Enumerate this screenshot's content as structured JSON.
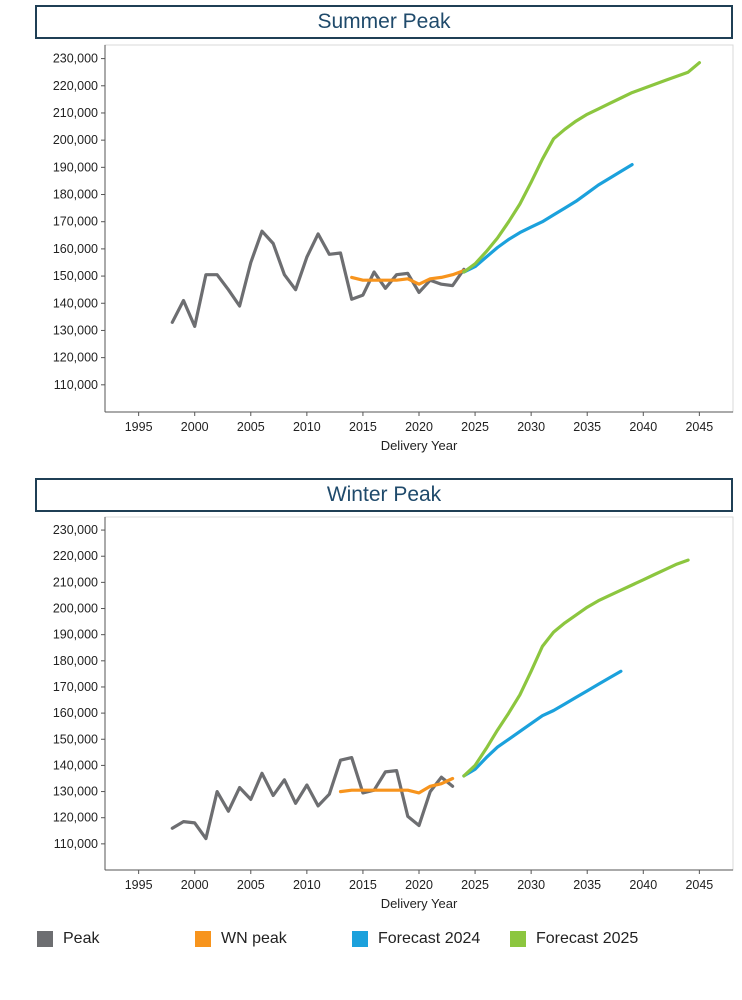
{
  "chart_data": [
    {
      "type": "line",
      "title": "Summer Peak",
      "xlabel": "Delivery Year",
      "ylabel": "",
      "xlim": [
        1992,
        2048
      ],
      "ylim": [
        100000,
        235000
      ],
      "xticks": [
        1995,
        2000,
        2005,
        2010,
        2015,
        2020,
        2025,
        2030,
        2035,
        2040,
        2045
      ],
      "xtick_labels": [
        "1995",
        "2000",
        "2005",
        "2010",
        "2015",
        "2020",
        "2025",
        "2030",
        "2035",
        "2040",
        "2045"
      ],
      "yticks": [
        110000,
        120000,
        130000,
        140000,
        150000,
        160000,
        170000,
        180000,
        190000,
        200000,
        210000,
        220000,
        230000
      ],
      "ytick_labels": [
        "110,000",
        "120,000",
        "130,000",
        "140,000",
        "150,000",
        "160,000",
        "170,000",
        "180,000",
        "190,000",
        "200,000",
        "210,000",
        "220,000",
        "230,000"
      ],
      "series": [
        {
          "name": "Peak",
          "color": "#6d6e71",
          "x": [
            1998,
            1999,
            2000,
            2001,
            2002,
            2003,
            2004,
            2005,
            2006,
            2007,
            2008,
            2009,
            2010,
            2011,
            2012,
            2013,
            2014,
            2015,
            2016,
            2017,
            2018,
            2019,
            2020,
            2021,
            2022,
            2023,
            2024
          ],
          "values": [
            133000,
            141000,
            131500,
            150500,
            150500,
            145000,
            139000,
            155000,
            166500,
            162000,
            150500,
            145000,
            157000,
            165500,
            158000,
            158500,
            141500,
            143000,
            151500,
            145500,
            150500,
            151000,
            144000,
            148500,
            147000,
            146500,
            152500
          ]
        },
        {
          "name": "WN peak",
          "color": "#f7941d",
          "x": [
            2014,
            2015,
            2016,
            2017,
            2018,
            2019,
            2020,
            2021,
            2022,
            2023,
            2024
          ],
          "values": [
            149500,
            148500,
            148500,
            148500,
            148500,
            149000,
            147000,
            149000,
            149500,
            150500,
            152000
          ]
        },
        {
          "name": "Forecast 2024",
          "color": "#1ba1dc",
          "x": [
            2024,
            2025,
            2026,
            2027,
            2028,
            2029,
            2030,
            2031,
            2032,
            2033,
            2034,
            2035,
            2036,
            2037,
            2038,
            2039
          ],
          "values": [
            151500,
            153500,
            157000,
            160500,
            163500,
            166000,
            168000,
            170000,
            172500,
            175000,
            177500,
            180500,
            183500,
            186000,
            188500,
            191000
          ]
        },
        {
          "name": "Forecast 2025",
          "color": "#8cc63f",
          "x": [
            2024,
            2025,
            2026,
            2027,
            2028,
            2029,
            2030,
            2031,
            2032,
            2033,
            2034,
            2035,
            2036,
            2037,
            2038,
            2039,
            2040,
            2041,
            2042,
            2043,
            2044,
            2045
          ],
          "values": [
            151500,
            154500,
            159000,
            164000,
            170000,
            176500,
            184500,
            193000,
            200500,
            204000,
            207000,
            209500,
            211500,
            213500,
            215500,
            217500,
            219000,
            220500,
            222000,
            223500,
            225000,
            228500
          ]
        }
      ]
    },
    {
      "type": "line",
      "title": "Winter Peak",
      "xlabel": "Delivery Year",
      "ylabel": "",
      "xlim": [
        1992,
        2048
      ],
      "ylim": [
        100000,
        235000
      ],
      "xticks": [
        1995,
        2000,
        2005,
        2010,
        2015,
        2020,
        2025,
        2030,
        2035,
        2040,
        2045
      ],
      "xtick_labels": [
        "1995",
        "2000",
        "2005",
        "2010",
        "2015",
        "2020",
        "2025",
        "2030",
        "2035",
        "2040",
        "2045"
      ],
      "yticks": [
        110000,
        120000,
        130000,
        140000,
        150000,
        160000,
        170000,
        180000,
        190000,
        200000,
        210000,
        220000,
        230000
      ],
      "ytick_labels": [
        "110,000",
        "120,000",
        "130,000",
        "140,000",
        "150,000",
        "160,000",
        "170,000",
        "180,000",
        "190,000",
        "200,000",
        "210,000",
        "220,000",
        "230,000"
      ],
      "series": [
        {
          "name": "Peak",
          "color": "#6d6e71",
          "x": [
            1998,
            1999,
            2000,
            2001,
            2002,
            2003,
            2004,
            2005,
            2006,
            2007,
            2008,
            2009,
            2010,
            2011,
            2012,
            2013,
            2014,
            2015,
            2016,
            2017,
            2018,
            2019,
            2020,
            2021,
            2022,
            2023
          ],
          "values": [
            116000,
            118500,
            118000,
            112000,
            130000,
            122500,
            131500,
            127000,
            137000,
            128500,
            134500,
            125500,
            132500,
            124500,
            129000,
            142000,
            143000,
            129500,
            130500,
            137500,
            138000,
            120500,
            117000,
            130000,
            135500,
            132000
          ]
        },
        {
          "name": "WN peak",
          "color": "#f7941d",
          "x": [
            2013,
            2014,
            2015,
            2016,
            2017,
            2018,
            2019,
            2020,
            2021,
            2022,
            2023
          ],
          "values": [
            130000,
            130500,
            130500,
            130500,
            130500,
            130500,
            130500,
            129500,
            132000,
            133000,
            135000
          ]
        },
        {
          "name": "Forecast 2024",
          "color": "#1ba1dc",
          "x": [
            2024,
            2025,
            2026,
            2027,
            2028,
            2029,
            2030,
            2031,
            2032,
            2033,
            2034,
            2035,
            2036,
            2037,
            2038
          ],
          "values": [
            136000,
            138500,
            143000,
            147000,
            150000,
            153000,
            156000,
            159000,
            161000,
            163500,
            166000,
            168500,
            171000,
            173500,
            176000
          ]
        },
        {
          "name": "Forecast 2025",
          "color": "#8cc63f",
          "x": [
            2024,
            2025,
            2026,
            2027,
            2028,
            2029,
            2030,
            2031,
            2032,
            2033,
            2034,
            2035,
            2036,
            2037,
            2038,
            2039,
            2040,
            2041,
            2042,
            2043,
            2044
          ],
          "values": [
            136000,
            140000,
            146500,
            153500,
            160000,
            167000,
            176000,
            185500,
            191000,
            194500,
            197500,
            200500,
            203000,
            205000,
            207000,
            209000,
            211000,
            213000,
            215000,
            217000,
            218500
          ]
        }
      ]
    }
  ],
  "legend": [
    {
      "label": "Peak",
      "color": "#6d6e71"
    },
    {
      "label": "WN peak",
      "color": "#f7941d"
    },
    {
      "label": "Forecast 2024",
      "color": "#1ba1dc"
    },
    {
      "label": "Forecast 2025",
      "color": "#8cc63f"
    }
  ]
}
